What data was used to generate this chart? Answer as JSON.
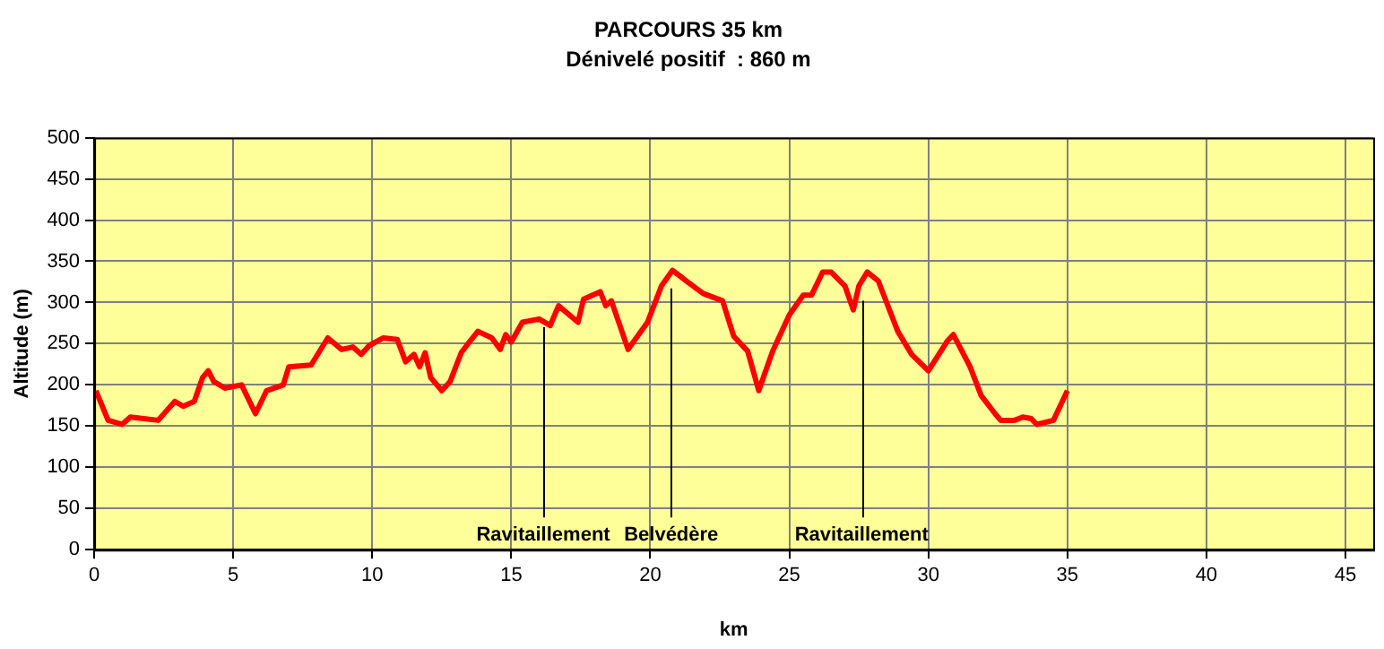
{
  "chart_data": {
    "type": "line",
    "title": "PARCOURS 35 km",
    "subtitle": "Dénivelé positif  : 860 m",
    "xlabel": "km",
    "ylabel": "Altitude (m)",
    "x": [
      0.06,
      0.5,
      1.0,
      1.3,
      2.3,
      2.9,
      3.2,
      3.6,
      3.9,
      4.1,
      4.3,
      4.7,
      5.3,
      5.8,
      6.2,
      6.8,
      7.0,
      7.8,
      8.4,
      8.9,
      9.3,
      9.6,
      9.9,
      10.4,
      10.9,
      11.2,
      11.5,
      11.7,
      11.9,
      12.1,
      12.5,
      12.8,
      13.2,
      13.4,
      13.8,
      14.3,
      14.6,
      14.8,
      15.0,
      15.4,
      16.0,
      16.4,
      16.7,
      17.4,
      17.6,
      18.2,
      18.4,
      18.6,
      19.2,
      19.9,
      20.4,
      20.8,
      21.3,
      21.9,
      22.6,
      23.0,
      23.5,
      23.9,
      24.4,
      25.0,
      25.5,
      25.8,
      26.2,
      26.5,
      27.0,
      27.3,
      27.5,
      27.8,
      28.2,
      28.9,
      29.4,
      30.0,
      30.7,
      30.9,
      31.5,
      31.9,
      32.4,
      32.6,
      33.1,
      33.4,
      33.7,
      33.9,
      34.5,
      35.0
    ],
    "series": [
      {
        "color": "#ff0000",
        "values": [
          193,
          157,
          152,
          161,
          157,
          180,
          174,
          180,
          209,
          217,
          204,
          196,
          200,
          165,
          193,
          200,
          222,
          224,
          257,
          243,
          246,
          237,
          248,
          257,
          255,
          228,
          237,
          222,
          239,
          209,
          193,
          204,
          239,
          248,
          265,
          257,
          243,
          261,
          252,
          276,
          280,
          272,
          296,
          276,
          304,
          313,
          296,
          302,
          243,
          276,
          320,
          339,
          326,
          311,
          302,
          259,
          241,
          193,
          241,
          285,
          309,
          309,
          337,
          337,
          320,
          291,
          320,
          337,
          326,
          265,
          237,
          217,
          254,
          261,
          222,
          187,
          165,
          157,
          157,
          161,
          159,
          152,
          157,
          193
        ]
      }
    ],
    "xlim": [
      0,
      46
    ],
    "xticks": [
      0,
      5,
      10,
      15,
      20,
      25,
      30,
      35,
      40,
      45
    ],
    "ylim": [
      0,
      500
    ],
    "yticks": [
      0,
      50,
      100,
      150,
      200,
      250,
      300,
      350,
      400,
      450,
      500
    ],
    "grid": true,
    "legend": false,
    "marker": "none",
    "line_style": "solid",
    "annotations": [
      {
        "text": "Ravitaillement",
        "x": 16.15,
        "y": 270
      },
      {
        "text": "Belvédère",
        "x": 20.75,
        "y": 317
      },
      {
        "text": "Ravitaillement",
        "x": 27.6,
        "y": 302
      }
    ]
  }
}
